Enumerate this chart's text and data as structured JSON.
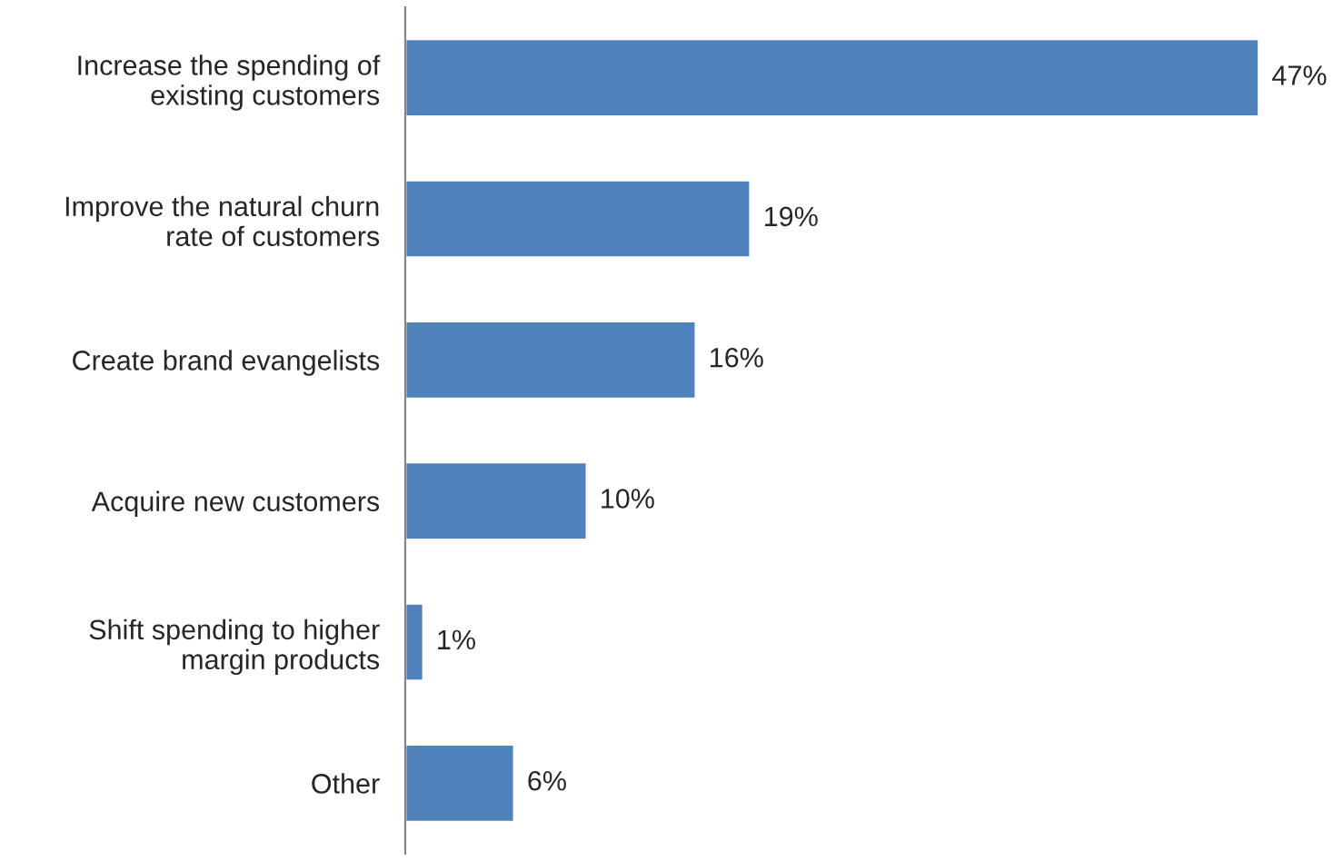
{
  "chart_data": {
    "type": "bar",
    "orientation": "horizontal",
    "categories": [
      "Increase the spending of\nexisting customers",
      "Improve the natural churn\nrate of customers",
      "Create brand evangelists",
      "Acquire new customers",
      "Shift spending to higher\nmargin products",
      "Other"
    ],
    "values": [
      47,
      19,
      16,
      10,
      1,
      6
    ],
    "value_labels": [
      "47%",
      "19%",
      "16%",
      "10%",
      "1%",
      "6%"
    ],
    "color": "#4f81bd",
    "grid": false,
    "legend": false,
    "tick_labels": "y"
  }
}
